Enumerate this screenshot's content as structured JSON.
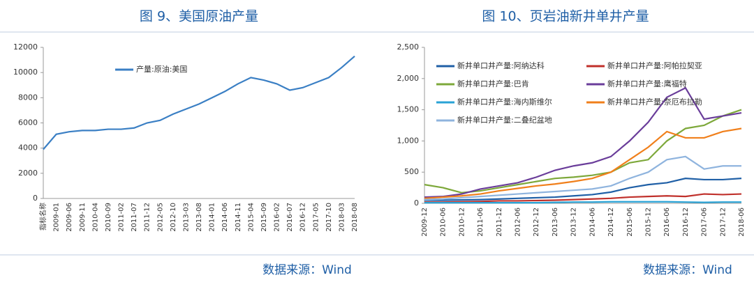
{
  "chart_data": [
    {
      "type": "line",
      "title": "图 9、美国原油产量",
      "source": "数据来源：Wind",
      "categories": [
        "指标名称",
        "2009-01",
        "2009-06",
        "2009-11",
        "2010-04",
        "2010-09",
        "2011-02",
        "2011-07",
        "2011-12",
        "2012-05",
        "2012-10",
        "2013-03",
        "2013-08",
        "2014-01",
        "2014-06",
        "2014-11",
        "2015-04",
        "2015-09",
        "2016-02",
        "2016-07",
        "2016-12",
        "2017-05",
        "2017-10",
        "2018-03",
        "2018-08"
      ],
      "series": [
        {
          "name": "产量:原油:美国",
          "color": "#3a7fc4",
          "values": [
            3900,
            5100,
            5300,
            5400,
            5400,
            5500,
            5500,
            5600,
            6000,
            6200,
            6700,
            7100,
            7500,
            8000,
            8500,
            9100,
            9600,
            9400,
            9100,
            8600,
            8800,
            9200,
            9600,
            10400,
            11300
          ]
        }
      ],
      "ylim": [
        0,
        12000
      ],
      "yticks": [
        0,
        2000,
        4000,
        6000,
        8000,
        10000,
        12000
      ],
      "legend": "top-left"
    },
    {
      "type": "line",
      "title": "图 10、页岩油新井单井产量",
      "source": "数据来源：Wind",
      "categories": [
        "2009-12",
        "2010-06",
        "2010-12",
        "2011-06",
        "2011-12",
        "2012-06",
        "2012-12",
        "2013-06",
        "2013-12",
        "2014-06",
        "2014-12",
        "2015-06",
        "2015-12",
        "2016-06",
        "2016-12",
        "2017-06",
        "2017-12",
        "2018-06"
      ],
      "series": [
        {
          "name": "新井单口井产量:阿纳达科",
          "color": "#1f5fa6",
          "values": [
            50,
            50,
            55,
            60,
            70,
            80,
            90,
            100,
            120,
            140,
            180,
            250,
            300,
            330,
            400,
            380,
            380,
            400
          ]
        },
        {
          "name": "新井单口井产量:阿帕拉契亚",
          "color": "#c0302b",
          "values": [
            20,
            20,
            25,
            30,
            40,
            40,
            45,
            50,
            60,
            70,
            80,
            100,
            110,
            120,
            110,
            150,
            140,
            150
          ]
        },
        {
          "name": "新井单口井产量:巴肯",
          "color": "#7da83a",
          "values": [
            300,
            250,
            170,
            200,
            250,
            300,
            350,
            400,
            420,
            450,
            500,
            650,
            700,
            1000,
            1200,
            1250,
            1400,
            1500
          ]
        },
        {
          "name": "新井单口井产量:鹰福特",
          "color": "#6a3d9a",
          "values": [
            100,
            110,
            150,
            230,
            280,
            330,
            420,
            530,
            600,
            650,
            750,
            1000,
            1300,
            1700,
            1850,
            1350,
            1400,
            1450
          ]
        },
        {
          "name": "新井单口井产量:海内斯维尔",
          "color": "#29a3d6",
          "values": [
            10,
            10,
            10,
            10,
            10,
            10,
            10,
            15,
            20,
            20,
            25,
            25,
            25,
            25,
            20,
            15,
            20,
            20
          ]
        },
        {
          "name": "新井单口井产量:奈厄布拉勒",
          "color": "#f07f1b",
          "values": [
            80,
            100,
            120,
            150,
            200,
            240,
            280,
            310,
            350,
            400,
            500,
            700,
            900,
            1150,
            1050,
            1050,
            1150,
            1200
          ]
        },
        {
          "name": "新井单口井产量:二叠纪盆地",
          "color": "#8fb4de",
          "values": [
            60,
            70,
            90,
            110,
            130,
            150,
            170,
            190,
            210,
            230,
            280,
            400,
            500,
            700,
            750,
            550,
            600,
            600
          ]
        }
      ],
      "ylim": [
        0,
        2500
      ],
      "yticks": [
        0,
        {
          "value": 500,
          "label": "500"
        },
        {
          "value": 1000,
          "label": "1,000"
        },
        {
          "value": 1500,
          "label": "1,500"
        },
        {
          "value": 2000,
          "label": "2,000"
        },
        {
          "value": 2500,
          "label": "2,500"
        }
      ],
      "legend": "top-left"
    }
  ]
}
